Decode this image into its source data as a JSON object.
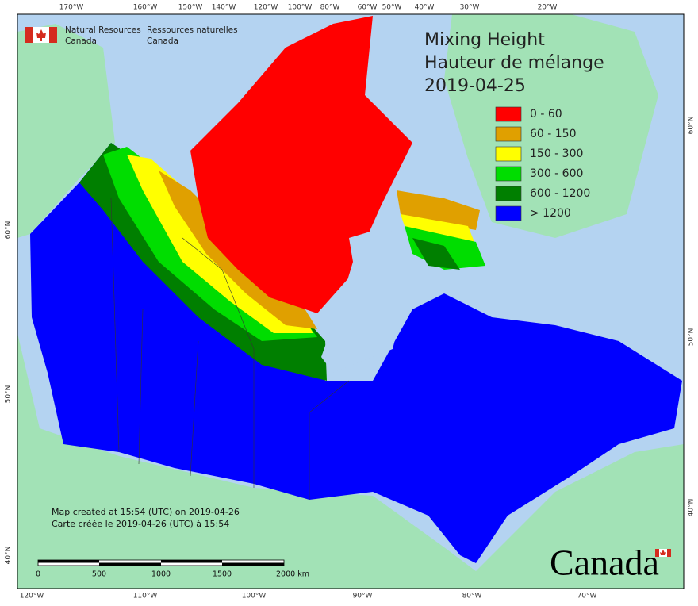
{
  "header": {
    "english": [
      "Natural Resources",
      "Canada"
    ],
    "french": [
      "Ressources naturelles",
      "Canada"
    ]
  },
  "title": [
    "Mixing Height",
    "Hauteur de mélange",
    "2019-04-25"
  ],
  "legend": [
    {
      "label": "0 - 60",
      "color": "#ff0000"
    },
    {
      "label": "60 - 150",
      "color": "#e0a000"
    },
    {
      "label": "150 - 300",
      "color": "#ffff00"
    },
    {
      "label": "300 - 600",
      "color": "#00dd00"
    },
    {
      "label": "600 - 1200",
      "color": "#007f00"
    },
    {
      "label": "> 1200",
      "color": "#0000ff"
    }
  ],
  "graticule": {
    "top": [
      "170°W",
      "160°W",
      "150°W",
      "140°W",
      "120°W",
      "100°W",
      "80°W",
      "60°W",
      "50°W",
      "40°W",
      "30°W",
      "20°W"
    ],
    "bottom": [
      "120°W",
      "110°W",
      "100°W",
      "90°W",
      "80°W",
      "70°W"
    ],
    "left": [
      "60°N",
      "50°N",
      "40°N"
    ],
    "right": [
      "60°N",
      "50°N",
      "40°N"
    ]
  },
  "footnote": [
    "Map created at 15:54 (UTC) on 2019-04-26",
    "Carte créée le 2019-04-26 (UTC) à 15:54"
  ],
  "scale_bar": [
    "0",
    "500",
    "1000",
    "1500",
    "2000 km"
  ],
  "wordmark": "Canada"
}
